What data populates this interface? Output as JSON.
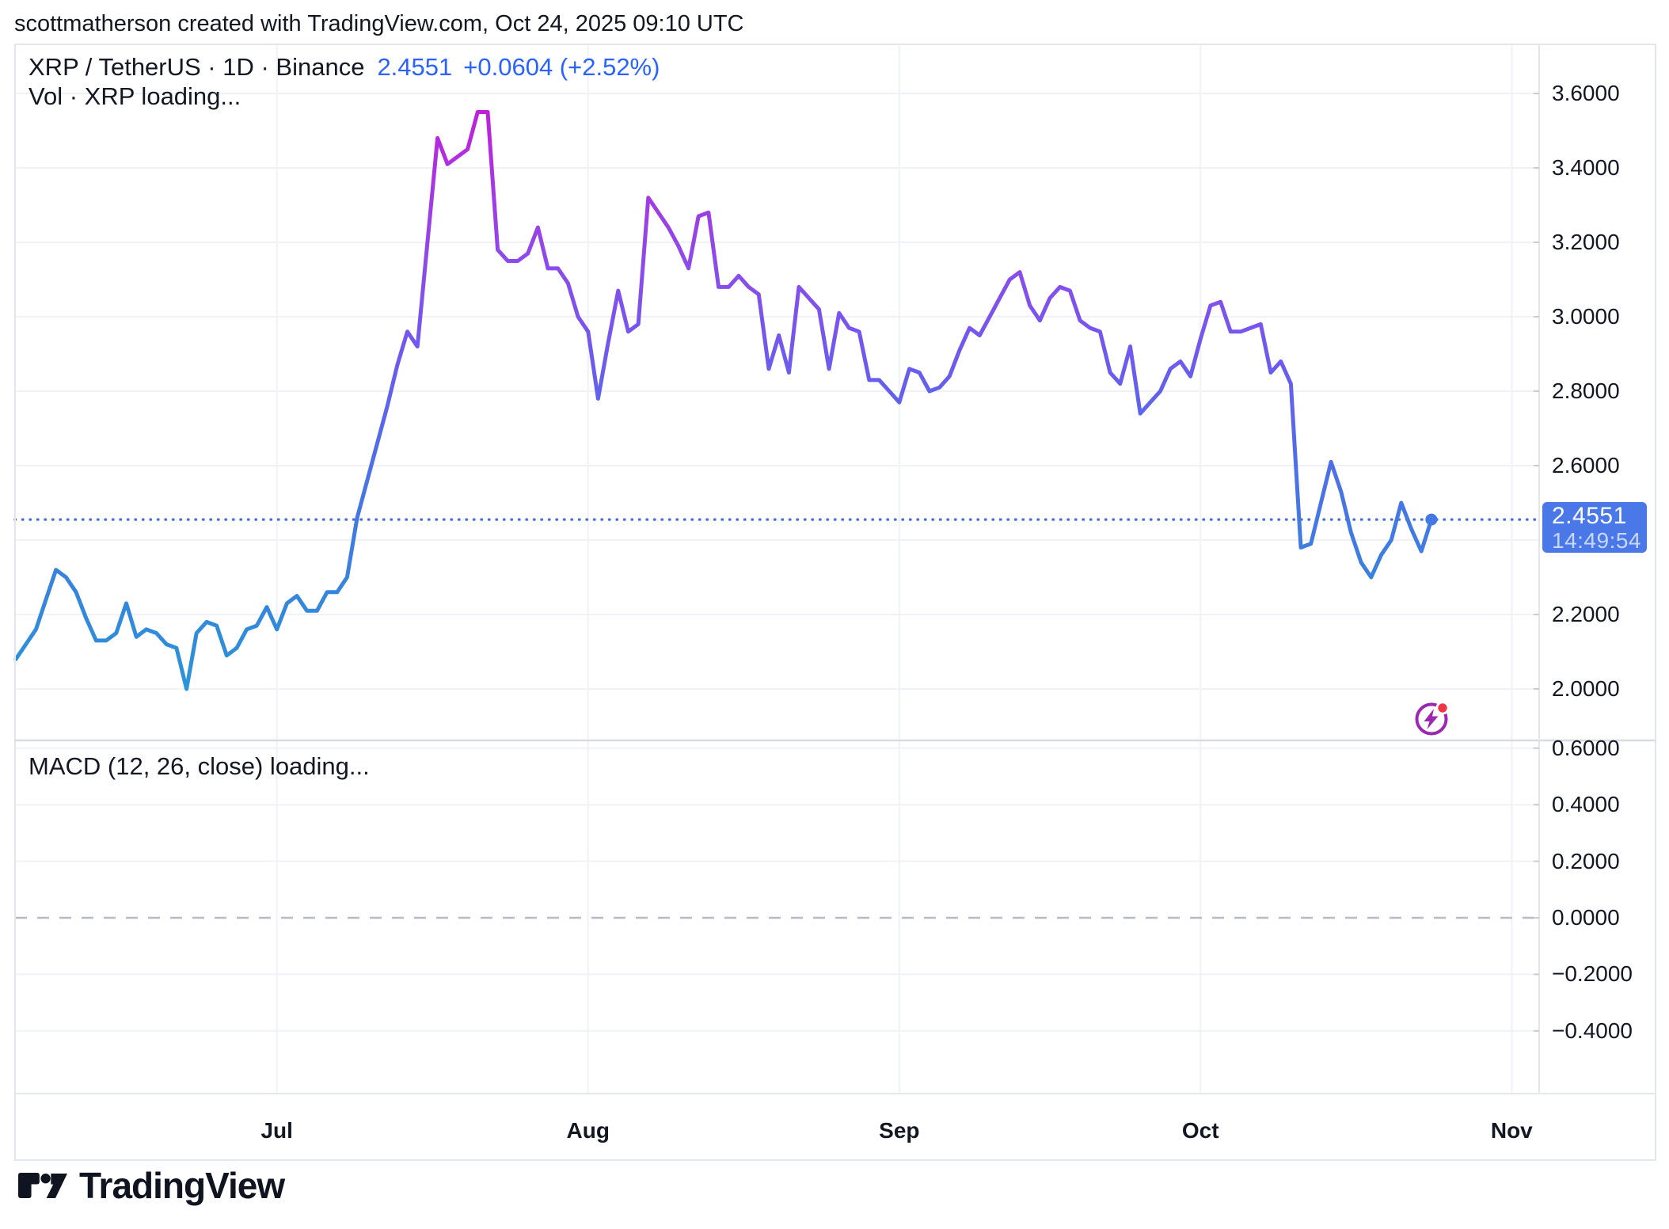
{
  "attribution": "scottmatherson created with TradingView.com, Oct 24, 2025 09:10 UTC",
  "legend": {
    "symbol": "XRP / TetherUS · 1D · Binance",
    "price": "2.4551",
    "change": "+0.0604 (+2.52%)",
    "vol_row": "Vol · XRP loading..."
  },
  "macd_row": "MACD (12, 26, close) loading...",
  "price_axis_labels": [
    "3.6000",
    "3.4000",
    "3.2000",
    "3.0000",
    "2.8000",
    "2.6000",
    "2.2000",
    "2.0000"
  ],
  "macd_axis_labels": [
    "0.6000",
    "0.4000",
    "0.2000",
    "0.0000",
    "−0.2000",
    "−0.4000"
  ],
  "months": [
    "Jul",
    "Aug",
    "Sep",
    "Oct",
    "Nov"
  ],
  "badge": {
    "price": "2.4551",
    "countdown": "14:49:54"
  },
  "brand_text": "TradingView",
  "colors": {
    "accent_blue": "#2962FF",
    "badge_bg": "#4A78E8",
    "badge_countdown": "#C9D8F8",
    "dotted_price_line": "#4A72D9",
    "grid": "#F0F2F7",
    "border": "#E3E6EE",
    "pane_separator": "#D7DBE3",
    "dashed_zero": "#B7BAC6",
    "text": "#131722",
    "lightning_purple": "#9C27B0",
    "alert_red": "#F23645",
    "line_gradient": [
      "#C61AD8",
      "#A935E3",
      "#8C4BEB",
      "#7158EF",
      "#5569EC",
      "#4478E4",
      "#3487DC",
      "#2B94D9"
    ]
  },
  "chart_data": {
    "type": "line",
    "title": "XRP / TetherUS · 1D · Binance",
    "exchange": "Binance",
    "interval": "1D",
    "last_price": 2.4551,
    "change_abs": 0.0604,
    "change_pct": 2.52,
    "x_axis": {
      "start_date": "2025-06-05",
      "interval_days": 1,
      "tick_labels": [
        "Jul",
        "Aug",
        "Sep",
        "Oct",
        "Nov"
      ]
    },
    "y_axis": {
      "tick_labels": [
        3.6,
        3.4,
        3.2,
        3.0,
        2.8,
        2.6,
        2.2,
        2.0
      ],
      "range_shown": [
        1.88,
        3.66
      ],
      "grid": true
    },
    "legend_position": "top-left",
    "series": [
      {
        "name": "XRP/USDT close",
        "values": [
          2.08,
          2.12,
          2.16,
          2.24,
          2.32,
          2.3,
          2.26,
          2.19,
          2.13,
          2.13,
          2.15,
          2.23,
          2.14,
          2.16,
          2.15,
          2.12,
          2.11,
          2.0,
          2.15,
          2.18,
          2.17,
          2.09,
          2.11,
          2.16,
          2.17,
          2.22,
          2.16,
          2.23,
          2.25,
          2.21,
          2.21,
          2.26,
          2.26,
          2.3,
          2.46,
          2.56,
          2.66,
          2.76,
          2.87,
          2.96,
          2.92,
          3.2,
          3.48,
          3.41,
          3.43,
          3.45,
          3.55,
          3.55,
          3.18,
          3.15,
          3.15,
          3.17,
          3.24,
          3.13,
          3.13,
          3.09,
          3.0,
          2.96,
          2.78,
          2.93,
          3.07,
          2.96,
          2.98,
          3.32,
          3.28,
          3.24,
          3.19,
          3.13,
          3.27,
          3.28,
          3.08,
          3.08,
          3.11,
          3.08,
          3.06,
          2.86,
          2.95,
          2.85,
          3.08,
          3.05,
          3.02,
          2.86,
          3.01,
          2.97,
          2.96,
          2.83,
          2.83,
          2.8,
          2.77,
          2.86,
          2.85,
          2.8,
          2.81,
          2.84,
          2.91,
          2.97,
          2.95,
          3.0,
          3.05,
          3.1,
          3.12,
          3.03,
          2.99,
          3.05,
          3.08,
          3.07,
          2.99,
          2.97,
          2.96,
          2.85,
          2.82,
          2.92,
          2.74,
          2.77,
          2.8,
          2.86,
          2.88,
          2.84,
          2.94,
          3.03,
          3.04,
          2.96,
          2.96,
          2.97,
          2.98,
          2.85,
          2.88,
          2.82,
          2.38,
          2.39,
          2.5,
          2.61,
          2.53,
          2.42,
          2.34,
          2.3,
          2.36,
          2.4,
          2.5,
          2.43,
          2.37,
          2.4551
        ]
      }
    ],
    "macd_pane": {
      "label": "MACD (12, 26, close) loading...",
      "tick_labels": [
        0.6,
        0.4,
        0.2,
        0.0,
        -0.2,
        -0.4
      ],
      "zero_line_style": "dashed"
    }
  }
}
